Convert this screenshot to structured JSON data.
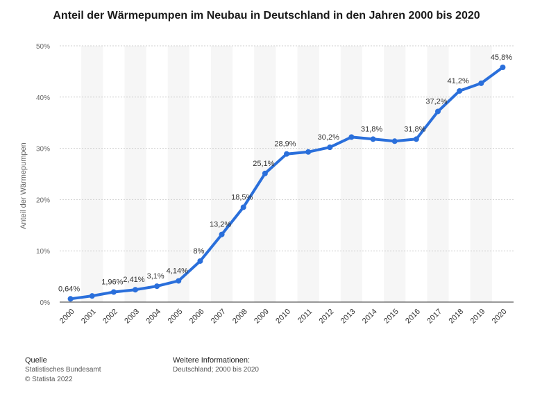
{
  "chart_data": {
    "type": "line",
    "title": "Anteil der Wärmepumpen im Neubau in Deutschland in den Jahren 2000 bis 2020",
    "ylabel": "Anteil der Wärmepumpen",
    "xlabel": "",
    "ylim": [
      0,
      50
    ],
    "yticks": [
      0,
      10,
      20,
      30,
      40,
      50
    ],
    "ytick_labels": [
      "0%",
      "10%",
      "20%",
      "30%",
      "40%",
      "50%"
    ],
    "grid": true,
    "line_color": "#2a6fdb",
    "x": [
      "2000",
      "2001",
      "2002",
      "2003",
      "2004",
      "2005",
      "2006",
      "2007",
      "2008",
      "2009",
      "2010",
      "2011",
      "2012",
      "2013",
      "2014",
      "2015",
      "2016",
      "2017",
      "2018",
      "2019",
      "2020"
    ],
    "values": [
      0.64,
      1.2,
      1.96,
      2.41,
      3.1,
      4.14,
      8.0,
      13.2,
      18.5,
      25.1,
      28.9,
      29.3,
      30.2,
      32.2,
      31.8,
      31.4,
      31.8,
      37.2,
      41.2,
      42.7,
      45.8
    ],
    "data_labels": [
      "0,64%",
      "",
      "1,96%",
      "2,41%",
      "3,1%",
      "4,14%",
      "8%",
      "13,2%",
      "18,5%",
      "25,1%",
      "28,9%",
      "",
      "30,2%",
      "",
      "31,8%",
      "",
      "31,8%",
      "37,2%",
      "41,2%",
      "",
      "45,8%"
    ]
  },
  "footer": {
    "source_heading": "Quelle",
    "source_line1": "Statistisches Bundesamt",
    "source_line2": "© Statista 2022",
    "info_heading": "Weitere Informationen:",
    "info_line1": "Deutschland; 2000 bis 2020"
  }
}
